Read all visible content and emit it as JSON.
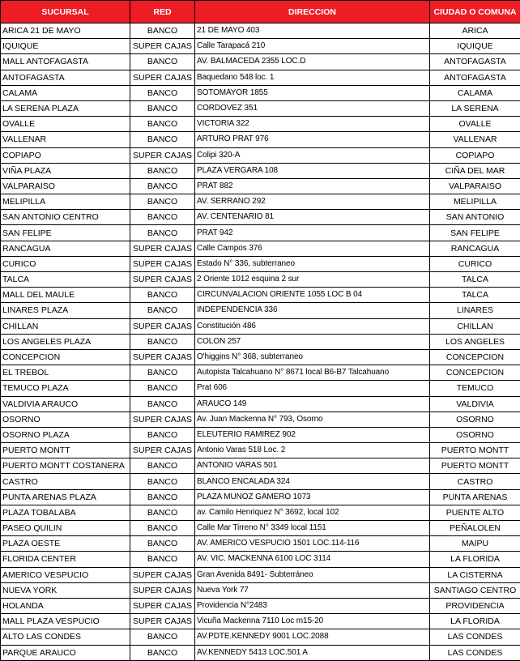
{
  "table": {
    "header": [
      "SUCURSAL",
      "RED",
      "DIRECCION",
      "CIUDAD O COMUNA"
    ],
    "rows": [
      [
        "ARICA 21 DE MAYO",
        "BANCO",
        "21 DE MAYO 403",
        "ARICA"
      ],
      [
        "IQUIQUE",
        "SUPER CAJAS",
        "Calle Tarapacá 210",
        "IQUIQUE"
      ],
      [
        "MALL ANTOFAGASTA",
        "BANCO",
        "AV. BALMACEDA 2355 LOC.D",
        "ANTOFAGASTA"
      ],
      [
        "ANTOFAGASTA",
        "SUPER CAJAS",
        "Baquedano 548 loc. 1",
        "ANTOFAGASTA"
      ],
      [
        "CALAMA",
        "BANCO",
        "SOTOMAYOR 1855",
        "CALAMA"
      ],
      [
        "LA SERENA PLAZA",
        "BANCO",
        "CORDOVEZ 351",
        "LA SERENA"
      ],
      [
        "OVALLE",
        "BANCO",
        "VICTORIA 322",
        "OVALLE"
      ],
      [
        "VALLENAR",
        "BANCO",
        "ARTURO PRAT 976",
        "VALLENAR"
      ],
      [
        "COPIAPO",
        "SUPER CAJAS",
        "Colipi 320-A",
        "COPIAPO"
      ],
      [
        "VIÑA PLAZA",
        "BANCO",
        "PLAZA VERGARA 108",
        "CIÑA DEL MAR"
      ],
      [
        "VALPARAISO",
        "BANCO",
        "PRAT 882",
        "VALPARAISO"
      ],
      [
        "MELIPILLA",
        "BANCO",
        "AV. SERRANO 292",
        "MELIPILLA"
      ],
      [
        "SAN ANTONIO CENTRO",
        "BANCO",
        "AV. CENTENARIO  81",
        "SAN ANTONIO"
      ],
      [
        "SAN FELIPE",
        "BANCO",
        "PRAT 942",
        "SAN FELIPE"
      ],
      [
        "RANCAGUA",
        "SUPER CAJAS",
        "Calle Campos 376",
        "RANCAGUA"
      ],
      [
        "CURICO",
        "SUPER CAJAS",
        "Estado N° 336, subterraneo",
        "CURICO"
      ],
      [
        "TALCA",
        "SUPER CAJAS",
        "2 Oriente 1012 esquina 2 sur",
        "TALCA"
      ],
      [
        "MALL DEL MAULE",
        "BANCO",
        "CIRCUNVALACION ORIENTE 1055 LOC B 04",
        "TALCA"
      ],
      [
        "LINARES PLAZA",
        "BANCO",
        "INDEPENDENCIA 336",
        "LINARES"
      ],
      [
        "CHILLAN",
        "SUPER CAJAS",
        "Constitución 486",
        "CHILLAN"
      ],
      [
        "LOS ANGELES PLAZA",
        "BANCO",
        "COLON 257",
        "LOS ANGELES"
      ],
      [
        "CONCEPCION",
        "SUPER CAJAS",
        "O'higgins N° 368, subterraneo",
        "CONCEPCION"
      ],
      [
        "EL TREBOL",
        "BANCO",
        "Autopista Talcahuano N° 8671 local B6-B7 Talcahuano",
        "CONCEPCION"
      ],
      [
        "TEMUCO PLAZA",
        "BANCO",
        "Prat 606",
        "TEMUCO"
      ],
      [
        "VALDIVIA ARAUCO",
        "BANCO",
        "ARAUCO 149",
        "VALDIVIA"
      ],
      [
        "OSORNO",
        "SUPER CAJAS",
        "Av. Juan Mackenna N° 793, Osorno",
        "OSORNO"
      ],
      [
        "OSORNO PLAZA",
        "BANCO",
        "ELEUTERIO RAMIREZ 902",
        "OSORNO"
      ],
      [
        "PUERTO MONTT",
        "SUPER CAJAS",
        "Antonio Varas 518 Loc. 2",
        "PUERTO MONTT"
      ],
      [
        "PUERTO MONTT COSTANERA",
        "BANCO",
        "ANTONIO VARAS 501",
        "PUERTO MONTT"
      ],
      [
        "CASTRO",
        "BANCO",
        "BLANCO ENCALADA 324",
        "CASTRO"
      ],
      [
        "PUNTA ARENAS PLAZA",
        "BANCO",
        "PLAZA MUNOZ GAMERO 1073",
        "PUNTA ARENAS"
      ],
      [
        "PLAZA TOBALABA",
        "BANCO",
        "av. Camilo Henriquez N° 3692, local 102",
        "PUENTE ALTO"
      ],
      [
        "PASEO QUILIN",
        "BANCO",
        "Calle Mar Tirreno N° 3349 local 1151",
        "PEÑALOLEN"
      ],
      [
        "PLAZA OESTE",
        "BANCO",
        "AV. AMERICO VESPUCIO 1501 LOC.114-116",
        "MAIPU"
      ],
      [
        "FLORIDA CENTER",
        "BANCO",
        "AV. VIC. MACKENNA 6100 LOC 3114",
        "LA FLORIDA"
      ],
      [
        "AMERICO VESPUCIO",
        "SUPER CAJAS",
        "Gran Avenida 8491- Subterráneo",
        "LA CISTERNA"
      ],
      [
        "NUEVA YORK",
        "SUPER CAJAS",
        "Nueva York 77",
        "SANTIAGO CENTRO"
      ],
      [
        "HOLANDA",
        "SUPER CAJAS",
        "Providencia N°2483",
        "PROVIDENCIA"
      ],
      [
        "MALL PLAZA VESPUCIO",
        "SUPER CAJAS",
        "Vicuña Mackenna 7110 Loc m15-20",
        "LA FLORIDA"
      ],
      [
        "ALTO LAS CONDES",
        "BANCO",
        "AV.PDTE.KENNEDY 9001 LOC.2088",
        "LAS CONDES"
      ],
      [
        "PARQUE ARAUCO",
        "BANCO",
        "AV.KENNEDY 5413 LOC.501 A",
        "LAS CONDES"
      ]
    ]
  }
}
